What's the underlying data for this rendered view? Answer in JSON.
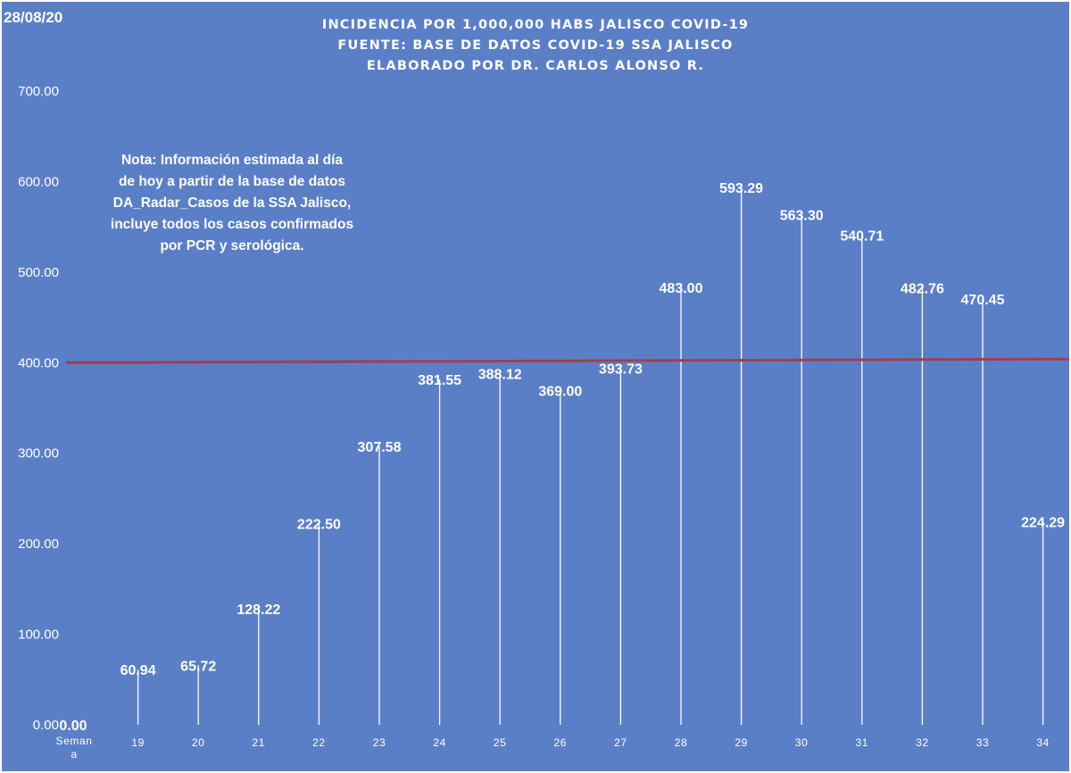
{
  "date": "28/08/20",
  "chart_data": {
    "type": "bar",
    "title": [
      "INCIDENCIA POR 1,000,000 HABS JALISCO COVID-19",
      "FUENTE: BASE DE DATOS COVID-19 SSA JALISCO",
      "ELABORADO POR DR. CARLOS ALONSO R."
    ],
    "xlabel": "",
    "ylabel": "",
    "categories": [
      "Semana",
      "19",
      "20",
      "21",
      "22",
      "23",
      "24",
      "25",
      "26",
      "27",
      "28",
      "29",
      "30",
      "31",
      "32",
      "33",
      "34"
    ],
    "values": [
      0.0,
      60.94,
      65.72,
      128.22,
      222.5,
      307.58,
      381.55,
      388.12,
      369.0,
      393.73,
      483.0,
      593.29,
      563.3,
      540.71,
      482.76,
      470.45,
      224.29
    ],
    "data_labels": [
      "0.00",
      "60.94",
      "65.72",
      "128.22",
      "222.50",
      "307.58",
      "381.55",
      "388.12",
      "369.00",
      "393.73",
      "483.00",
      "593.29",
      "563.30",
      "540.71",
      "482.76",
      "470.45",
      "224.29"
    ],
    "y_ticks": [
      "0.00",
      "100.00",
      "200.00",
      "300.00",
      "400.00",
      "500.00",
      "600.00",
      "700.00"
    ],
    "ylim": [
      0,
      700
    ],
    "reference_line": {
      "y_start": 400,
      "y_end": 404,
      "color": "#a0404e"
    },
    "grid": false,
    "annotation": [
      "Nota: Información estimada al día",
      "de hoy a partir de la base de datos",
      "DA_Radar_Casos de la SSA Jalisco,",
      "incluye todos los casos confirmados",
      "por PCR y serológica."
    ],
    "colors": {
      "background": "#5b7fc7",
      "bars": "#ffffff",
      "text": "#ffffff"
    }
  }
}
